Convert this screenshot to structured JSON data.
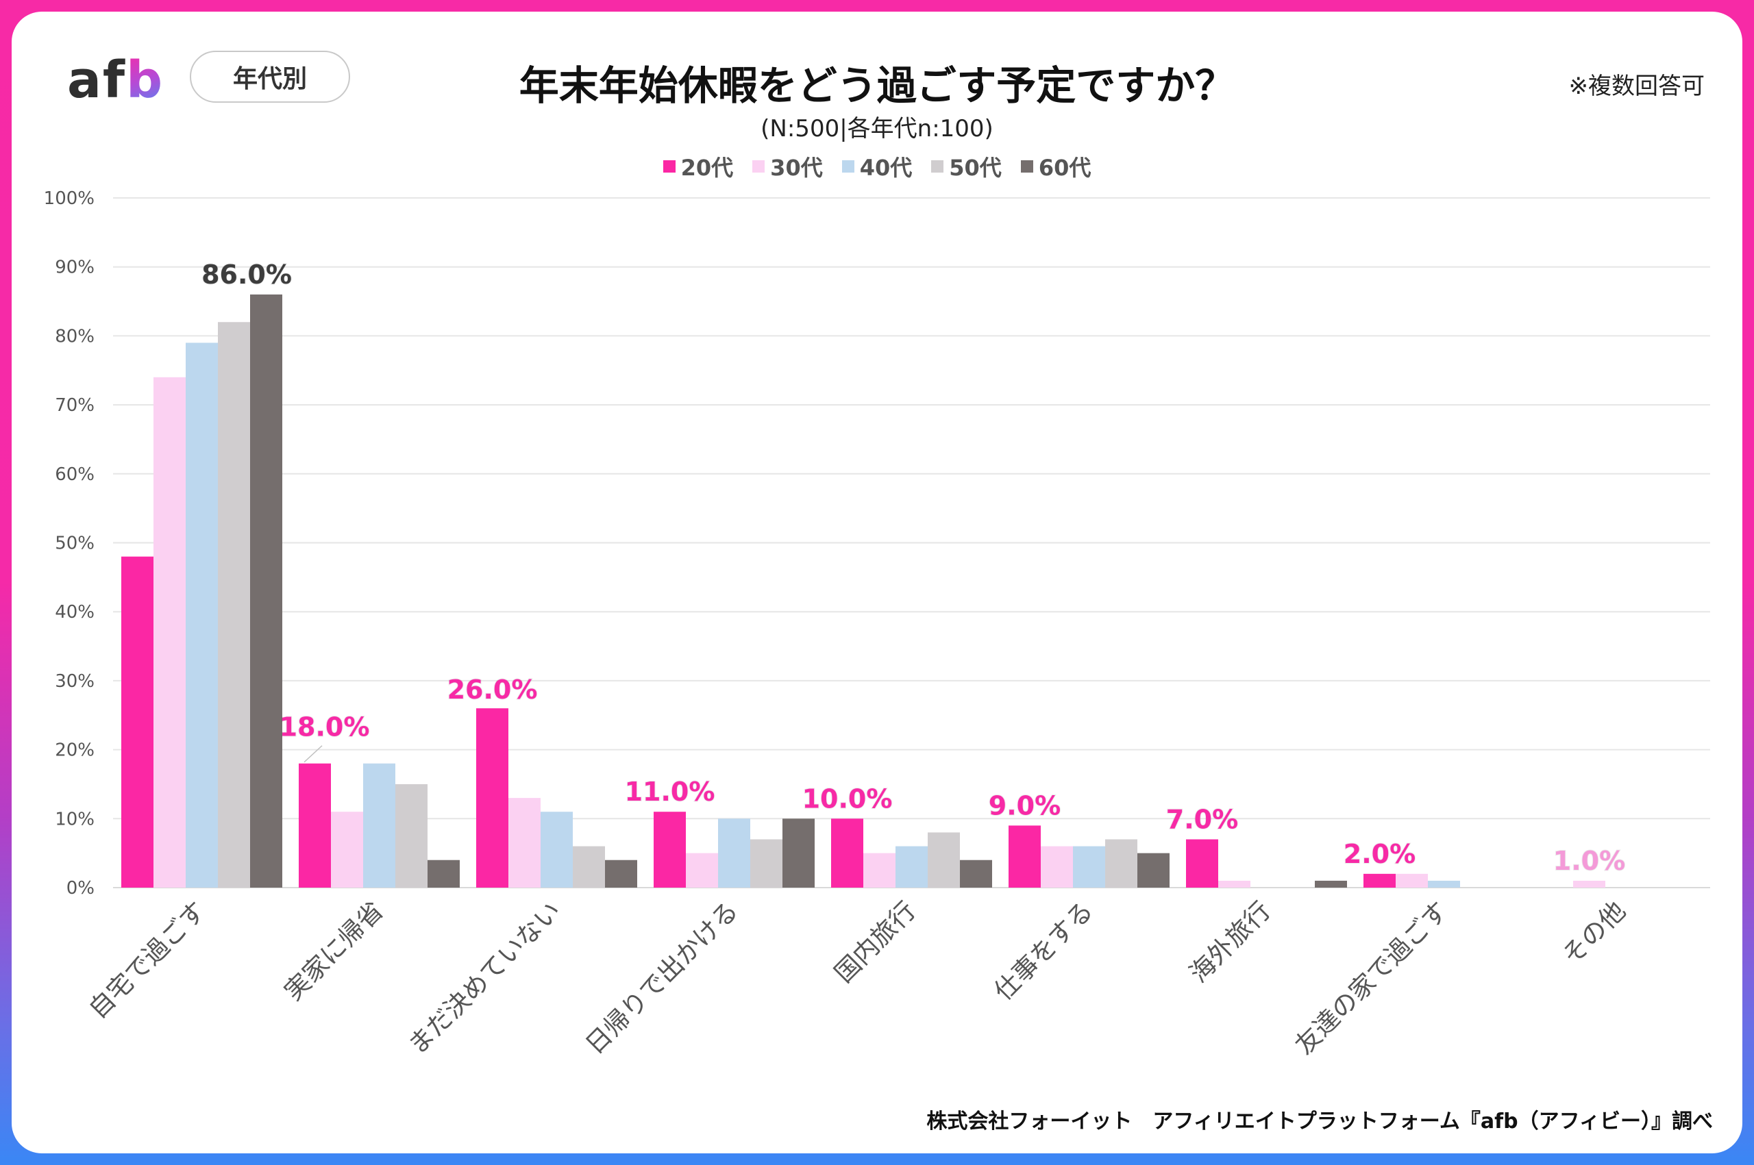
{
  "header": {
    "logo_text_af": "af",
    "logo_text_b": "b",
    "segment_pill": "年代別",
    "title": "年末年始休暇をどう過ごす予定ですか？",
    "subtitle": "(N:500|各年代n:100)",
    "note": "※複数回答可"
  },
  "footer": {
    "credit": "株式会社フォーイット　アフィリエイトプラットフォーム『afb（アフィビー）』調べ"
  },
  "chart_data": {
    "type": "bar",
    "title": "年末年始休暇をどう過ごす予定ですか？",
    "subtitle": "(N:500|各年代n:100)",
    "xlabel": "",
    "ylabel": "",
    "ylim": [
      0,
      100
    ],
    "yticks": [
      0,
      10,
      20,
      30,
      40,
      50,
      60,
      70,
      80,
      90,
      100
    ],
    "ytick_labels": [
      "0%",
      "10%",
      "20%",
      "30%",
      "40%",
      "50%",
      "60%",
      "70%",
      "80%",
      "90%",
      "100%"
    ],
    "grid": true,
    "legend_position": "top-center",
    "categories": [
      "自宅で過ごす",
      "実家に帰省",
      "まだ決めていない",
      "日帰りで出かける",
      "国内旅行",
      "仕事をする",
      "海外旅行",
      "友達の家で過ごす",
      "その他"
    ],
    "series": [
      {
        "name": "20代",
        "color": "#fb27a4",
        "values": [
          48,
          18,
          26,
          11,
          10,
          9,
          7,
          2,
          0
        ]
      },
      {
        "name": "30代",
        "color": "#fbd1f2",
        "values": [
          74,
          11,
          13,
          5,
          5,
          6,
          1,
          2,
          1
        ]
      },
      {
        "name": "40代",
        "color": "#bcd7ee",
        "values": [
          79,
          18,
          11,
          10,
          6,
          6,
          0,
          1,
          0
        ]
      },
      {
        "name": "50代",
        "color": "#d0cdcf",
        "values": [
          82,
          15,
          6,
          7,
          8,
          7,
          0,
          0,
          0
        ]
      },
      {
        "name": "60代",
        "color": "#756e6d",
        "values": [
          86,
          4,
          4,
          10,
          4,
          5,
          1,
          0,
          0
        ]
      }
    ],
    "data_labels": [
      {
        "category": "自宅で過ごす",
        "series": "60代",
        "text": "86.0%",
        "color": "#3d3d3d"
      },
      {
        "category": "実家に帰省",
        "series": "20代",
        "text": "18.0%",
        "color": "#f72aa6"
      },
      {
        "category": "まだ決めていない",
        "series": "20代",
        "text": "26.0%",
        "color": "#f72aa6"
      },
      {
        "category": "日帰りで出かける",
        "series": "20代",
        "text": "11.0%",
        "color": "#f72aa6"
      },
      {
        "category": "国内旅行",
        "series": "20代",
        "text": "10.0%",
        "color": "#f72aa6"
      },
      {
        "category": "仕事をする",
        "series": "20代",
        "text": "9.0%",
        "color": "#f72aa6"
      },
      {
        "category": "海外旅行",
        "series": "20代",
        "text": "7.0%",
        "color": "#f72aa6"
      },
      {
        "category": "友達の家で過ごす",
        "series": "20代",
        "text": "2.0%",
        "color": "#f72aa6"
      },
      {
        "category": "その他",
        "series": "30代",
        "text": "1.0%",
        "color": "#f49ad8"
      }
    ]
  }
}
